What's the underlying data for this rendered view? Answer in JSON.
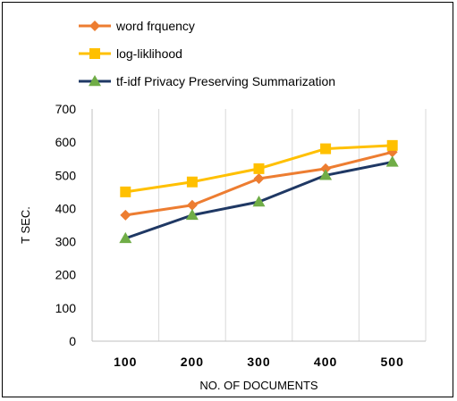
{
  "chart_data": {
    "type": "line",
    "title": "",
    "xlabel": "NO. OF DOCUMENTS",
    "ylabel": "T SEC.",
    "categories": [
      "100",
      "200",
      "300",
      "400",
      "500"
    ],
    "ylim": [
      0,
      700
    ],
    "yticks": [
      0,
      100,
      200,
      300,
      400,
      500,
      600,
      700
    ],
    "grid": "vertical",
    "legend_position": "top-left",
    "series": [
      {
        "name": "word frquency",
        "values": [
          380,
          410,
          490,
          520,
          570
        ],
        "color": "#ED7D31",
        "marker": "diamond"
      },
      {
        "name": "log-liklihood",
        "values": [
          450,
          480,
          520,
          580,
          590
        ],
        "color": "#FFC000",
        "marker": "square"
      },
      {
        "name": "tf-idf Privacy Preserving Summarization",
        "values": [
          310,
          380,
          420,
          500,
          540
        ],
        "color": "#1F3864",
        "marker": "triangle",
        "marker_color": "#70AD47"
      }
    ]
  }
}
